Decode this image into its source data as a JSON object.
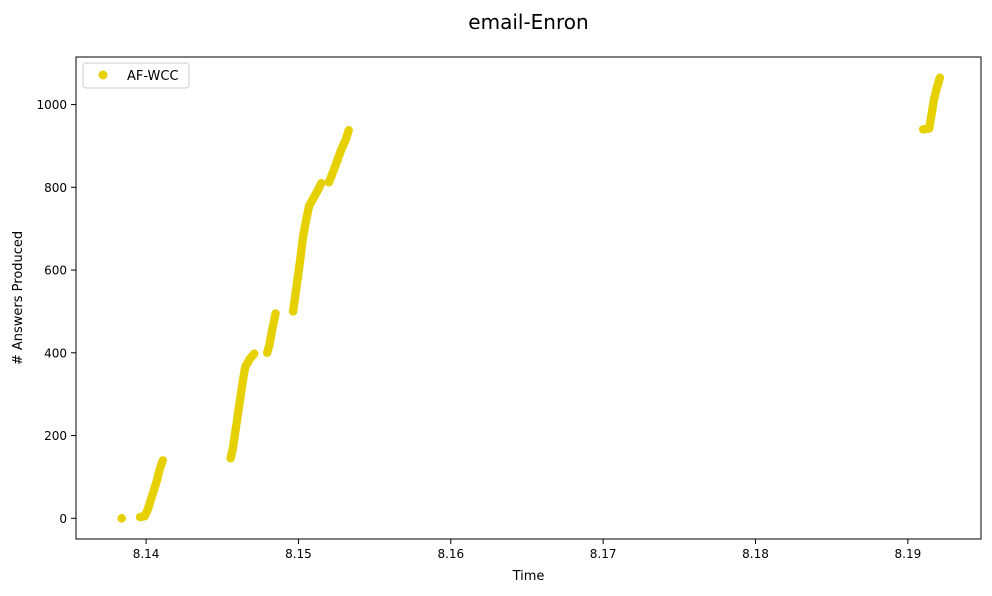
{
  "chart_data": {
    "type": "scatter",
    "title": "email-Enron",
    "xlabel": "Time",
    "ylabel": "# Answers Produced",
    "xlim": [
      8.1354,
      8.1948
    ],
    "ylim": [
      -50,
      1115
    ],
    "xticks": [
      8.14,
      8.15,
      8.16,
      8.17,
      8.18,
      8.19
    ],
    "xtick_labels": [
      "8.14",
      "8.15",
      "8.16",
      "8.17",
      "8.18",
      "8.19"
    ],
    "yticks": [
      0,
      200,
      400,
      600,
      800,
      1000
    ],
    "ytick_labels": [
      "0",
      "200",
      "400",
      "600",
      "800",
      "1000"
    ],
    "grid": false,
    "legend_position": "top-left",
    "series": [
      {
        "name": "AF-WCC",
        "color": "#e6d000",
        "marker": "circle",
        "segments": [
          {
            "x": [
              8.1384,
              8.1384
            ],
            "y": [
              0,
              0
            ]
          },
          {
            "x": [
              8.1396,
              8.1399,
              8.1401,
              8.1404,
              8.1407,
              8.1409,
              8.1411
            ],
            "y": [
              3,
              5,
              20,
              55,
              90,
              120,
              140
            ]
          },
          {
            "x": [
              8.14555,
              8.1457,
              8.1459,
              8.1461,
              8.1463,
              8.1465,
              8.1468,
              8.1471
            ],
            "y": [
              145,
              170,
              220,
              270,
              320,
              365,
              385,
              398
            ]
          },
          {
            "x": [
              8.14795,
              8.1481,
              8.1483,
              8.1485
            ],
            "y": [
              400,
              420,
              460,
              495
            ]
          },
          {
            "x": [
              8.14965,
              8.1498,
              8.1501,
              8.1503,
              8.1505,
              8.1507
            ],
            "y": [
              500,
              540,
              620,
              680,
              720,
              755
            ]
          },
          {
            "x": [
              8.1507,
              8.151,
              8.1513,
              8.1515
            ],
            "y": [
              755,
              775,
              795,
              810
            ]
          },
          {
            "x": [
              8.152,
              8.1522,
              8.1525,
              8.1528,
              8.1531,
              8.1533
            ],
            "y": [
              812,
              830,
              860,
              890,
              915,
              938
            ]
          },
          {
            "x": [
              8.191,
              8.1914,
              8.19155,
              8.1917,
              8.1919,
              8.1921
            ],
            "y": [
              940,
              942,
              975,
              1010,
              1040,
              1065
            ]
          }
        ]
      }
    ]
  }
}
